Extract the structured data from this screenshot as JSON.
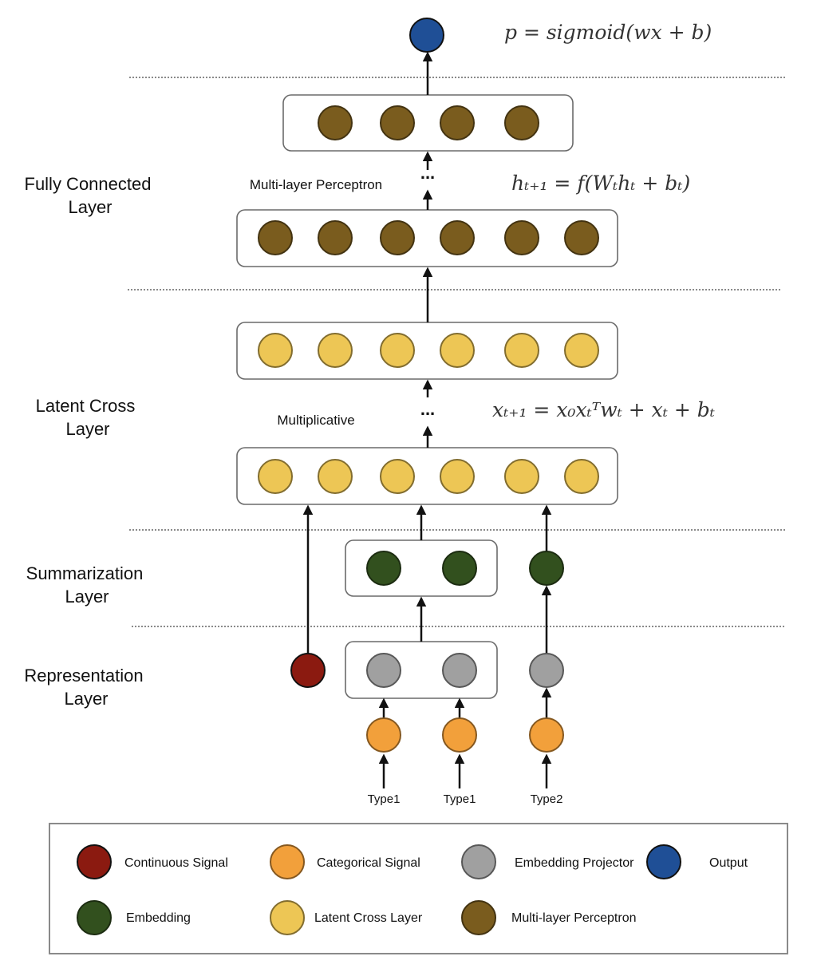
{
  "layers": {
    "fully_connected": [
      "Fully Connected",
      "Layer"
    ],
    "latent_cross": [
      "Latent Cross",
      "Layer"
    ],
    "summarization": [
      "Summarization",
      "Layer"
    ],
    "representation": [
      "Representation",
      "Layer"
    ]
  },
  "sub_labels": {
    "mlp": "Multi-layer Perceptron",
    "multiplicative": "Multiplicative"
  },
  "formulas": {
    "output": "p = sigmoid(wx + b)",
    "mlp": "hₜ₊₁ = f(Wₜhₜ + bₜ)",
    "cross": "xₜ₊₁ = x₀xₜᵀwₜ + xₜ + bₜ"
  },
  "ellipsis": "...",
  "type_labels": [
    "Type1",
    "Type1",
    "Type2"
  ],
  "colors": {
    "continuous": "#8b1a10",
    "categorical": "#f2a03b",
    "projector": "#a0a0a0",
    "output": "#1f4f96",
    "embedding": "#32501e",
    "latent_cross": "#edc655",
    "mlp": "#7a5c1e"
  },
  "legend": [
    {
      "label": "Continuous Signal",
      "color_key": "continuous"
    },
    {
      "label": "Categorical Signal",
      "color_key": "categorical"
    },
    {
      "label": "Embedding Projector",
      "color_key": "projector"
    },
    {
      "label": "Output",
      "color_key": "output"
    },
    {
      "label": "Embedding",
      "color_key": "embedding"
    },
    {
      "label": "Latent Cross Layer",
      "color_key": "latent_cross"
    },
    {
      "label": "Multi-layer Perceptron",
      "color_key": "mlp"
    }
  ]
}
